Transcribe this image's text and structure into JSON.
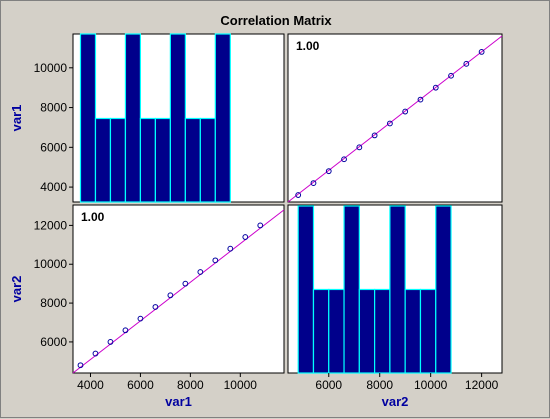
{
  "chart_data": {
    "type": "scatter-matrix",
    "title": "Correlation Matrix",
    "variables": [
      "var1",
      "var2"
    ],
    "colors": {
      "background": "#d4d0c8",
      "plot_bg": "#ffffff",
      "bar_fill": "#00008b",
      "bar_edge": "#00ffff",
      "fit_line": "#cc00cc",
      "marker": "#0000a0",
      "axis_label": "#0000a0"
    },
    "panels": [
      {
        "id": "var1-hist",
        "row": 0,
        "col": 0,
        "type": "histogram",
        "xlim": [
          3300,
          11750
        ],
        "ylim": [
          3250,
          11700
        ],
        "bins": [
          {
            "x0": 3600,
            "x1": 4200,
            "count_level": 11700
          },
          {
            "x0": 4200,
            "x1": 4800,
            "count_level": 7450
          },
          {
            "x0": 4800,
            "x1": 5400,
            "count_level": 7450
          },
          {
            "x0": 5400,
            "x1": 6000,
            "count_level": 11700
          },
          {
            "x0": 6000,
            "x1": 6600,
            "count_level": 7450
          },
          {
            "x0": 6600,
            "x1": 7200,
            "count_level": 7450
          },
          {
            "x0": 7200,
            "x1": 7800,
            "count_level": 11700
          },
          {
            "x0": 7800,
            "x1": 8400,
            "count_level": 7450
          },
          {
            "x0": 8400,
            "x1": 9000,
            "count_level": 7450
          },
          {
            "x0": 9000,
            "x1": 9600,
            "count_level": 11700
          }
        ],
        "yticks": [
          4000,
          6000,
          8000,
          10000
        ]
      },
      {
        "id": "var1-var2-scatter",
        "row": 0,
        "col": 1,
        "type": "scatter",
        "corr_label": "1.00",
        "xlim": [
          4400,
          12800
        ],
        "ylim": [
          3250,
          11700
        ],
        "x": [
          4800,
          5400,
          6000,
          6600,
          7200,
          7800,
          8400,
          9000,
          9600,
          10200,
          10800,
          11400,
          12000
        ],
        "y": [
          3600,
          4200,
          4800,
          5400,
          6000,
          6600,
          7200,
          7800,
          8400,
          9000,
          9600,
          10200,
          10800
        ],
        "fit": [
          [
            4400,
            3250
          ],
          [
            12800,
            11600
          ]
        ]
      },
      {
        "id": "var2-var1-scatter",
        "row": 1,
        "col": 0,
        "type": "scatter",
        "corr_label": "1.00",
        "xlim": [
          3300,
          11750
        ],
        "ylim": [
          4400,
          13050
        ],
        "x": [
          3600,
          4200,
          4800,
          5400,
          6000,
          6600,
          7200,
          7800,
          8400,
          9000,
          9600,
          10200,
          10800
        ],
        "y": [
          4800,
          5400,
          6000,
          6600,
          7200,
          7800,
          8400,
          9000,
          9600,
          10200,
          10800,
          11400,
          12000
        ],
        "fit": [
          [
            3300,
            4400
          ],
          [
            11750,
            12800
          ]
        ],
        "yticks": [
          6000,
          8000,
          10000,
          12000
        ],
        "xticks": [
          4000,
          6000,
          8000,
          10000
        ]
      },
      {
        "id": "var2-hist",
        "row": 1,
        "col": 1,
        "type": "histogram",
        "xlim": [
          4400,
          12800
        ],
        "ylim": [
          4400,
          13050
        ],
        "bins": [
          {
            "x0": 4800,
            "x1": 5400,
            "count_level": 13000
          },
          {
            "x0": 5400,
            "x1": 6000,
            "count_level": 8700
          },
          {
            "x0": 6000,
            "x1": 6600,
            "count_level": 8700
          },
          {
            "x0": 6600,
            "x1": 7200,
            "count_level": 13000
          },
          {
            "x0": 7200,
            "x1": 7800,
            "count_level": 8700
          },
          {
            "x0": 7800,
            "x1": 8400,
            "count_level": 8700
          },
          {
            "x0": 8400,
            "x1": 9000,
            "count_level": 13000
          },
          {
            "x0": 9000,
            "x1": 9600,
            "count_level": 8700
          },
          {
            "x0": 9600,
            "x1": 10200,
            "count_level": 8700
          },
          {
            "x0": 10200,
            "x1": 10800,
            "count_level": 13000
          }
        ],
        "xticks": [
          6000,
          8000,
          10000,
          12000
        ]
      }
    ]
  }
}
